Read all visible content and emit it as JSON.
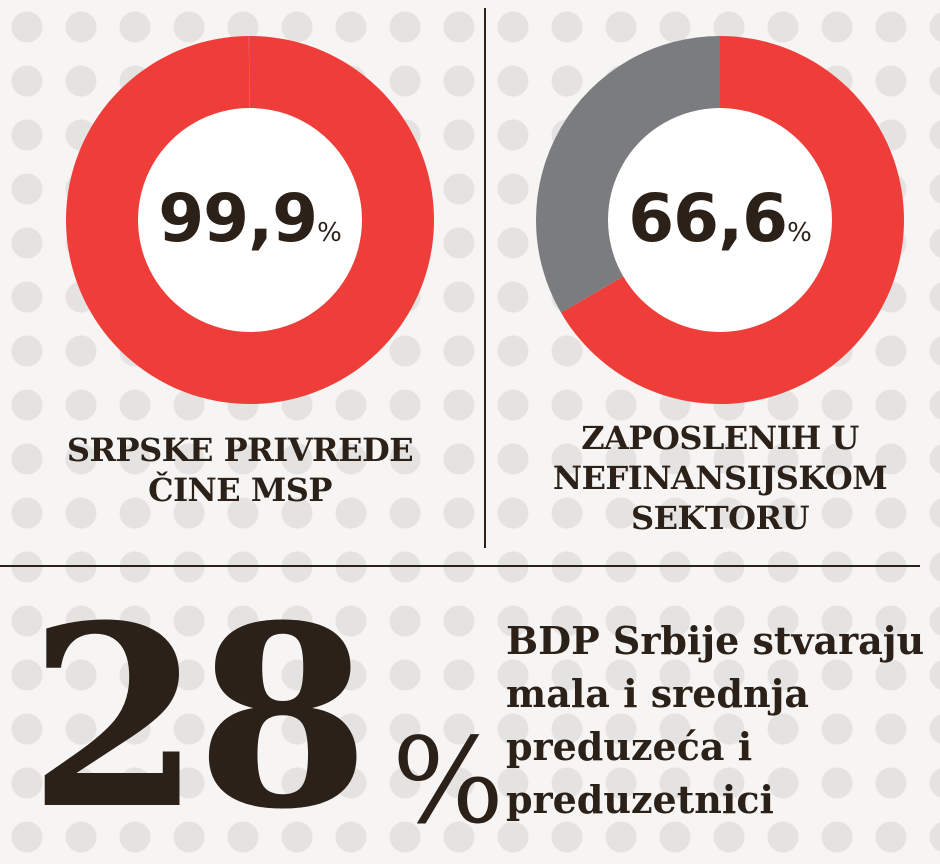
{
  "chart_data": [
    {
      "type": "pie",
      "center_label": {
        "value": "99,9",
        "unit": "%"
      },
      "caption_lines": [
        "SRPSKE PRIVREDE",
        "ČINE MSP"
      ],
      "slices": [
        {
          "value": 99.9,
          "color": "#ef3e39"
        },
        {
          "value": 0.1,
          "color": "#7a7c7f"
        }
      ]
    },
    {
      "type": "pie",
      "center_label": {
        "value": "66,6",
        "unit": "%"
      },
      "caption_lines": [
        "ZAPOSLENIH U",
        "NEFINANSIJSKOM",
        "SEKTORU"
      ],
      "slices": [
        {
          "value": 66.6,
          "color": "#ef3e39"
        },
        {
          "value": 33.4,
          "color": "#7a7c7f"
        }
      ]
    }
  ],
  "highlight": {
    "value": "28",
    "unit": "%",
    "text_lines": [
      "BDP Srbije stvaraju",
      "mala i srednja",
      "preduzeća i",
      "preduzetnici"
    ]
  }
}
